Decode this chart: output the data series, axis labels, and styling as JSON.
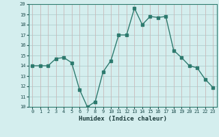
{
  "x": [
    0,
    1,
    2,
    3,
    4,
    5,
    6,
    7,
    8,
    9,
    10,
    11,
    12,
    13,
    14,
    15,
    16,
    17,
    18,
    19,
    20,
    21,
    22,
    23
  ],
  "y": [
    14,
    14,
    14,
    14.7,
    14.8,
    14.3,
    11.7,
    10.0,
    10.5,
    13.4,
    14.5,
    17.0,
    17.0,
    19.6,
    18.0,
    18.8,
    18.7,
    18.8,
    15.5,
    14.8,
    14.0,
    13.8,
    12.7,
    11.9
  ],
  "xlabel": "Humidex (Indice chaleur)",
  "ylim": [
    10,
    20
  ],
  "xlim": [
    -0.5,
    23.5
  ],
  "yticks": [
    10,
    11,
    12,
    13,
    14,
    15,
    16,
    17,
    18,
    19,
    20
  ],
  "xticks": [
    0,
    1,
    2,
    3,
    4,
    5,
    6,
    7,
    8,
    9,
    10,
    11,
    12,
    13,
    14,
    15,
    16,
    17,
    18,
    19,
    20,
    21,
    22,
    23
  ],
  "line_color": "#2d7a6e",
  "marker": "s",
  "marker_size": 2.5,
  "bg_color": "#d4eeee",
  "hgrid_color": "#b0d0d0",
  "vgrid_color": "#c8b8b8",
  "tick_color": "#1a4a4a",
  "xlabel_color": "#1a3a3a"
}
